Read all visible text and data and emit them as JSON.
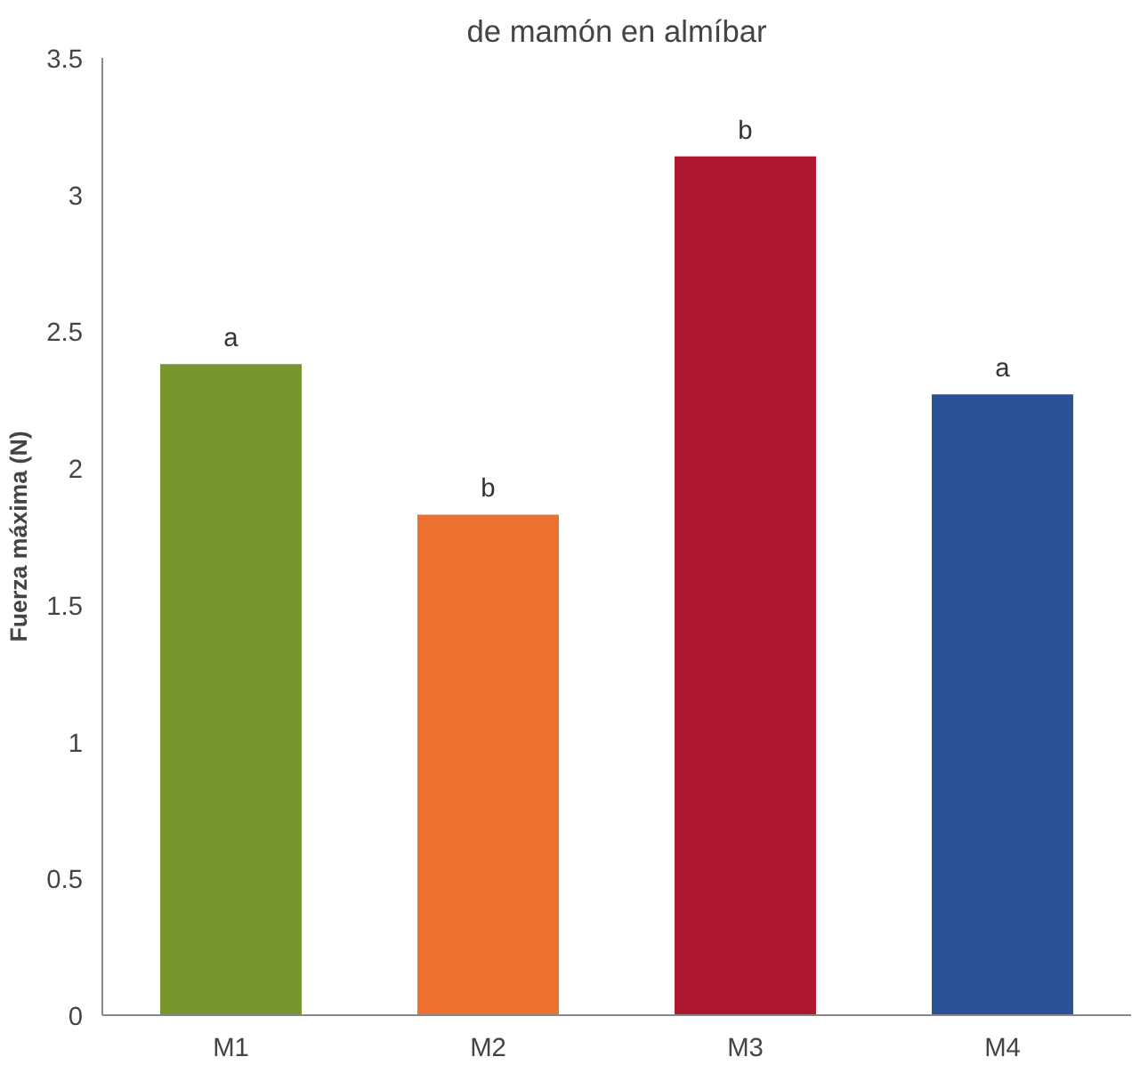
{
  "chart_data": {
    "type": "bar",
    "title": "de mamón en almíbar",
    "ylabel": "Fuerza máxima (N)",
    "categories": [
      "M1",
      "M2",
      "M3",
      "M4"
    ],
    "values": [
      2.38,
      1.83,
      3.14,
      2.27
    ],
    "colors": [
      "#77962b",
      "#ec7030",
      "#ae1730",
      "#2b5297"
    ],
    "ylim": [
      0,
      3.5
    ],
    "yticks": [
      0,
      0.5,
      1,
      1.5,
      2,
      2.5,
      3,
      3.5
    ],
    "grid": false,
    "annotations": [
      {
        "text": "a",
        "x": "M1",
        "y": 2.38
      },
      {
        "text": "b",
        "x": "M2",
        "y": 1.83
      },
      {
        "text": "b",
        "x": "M3",
        "y": 3.14
      },
      {
        "text": "a",
        "x": "M4",
        "y": 2.27
      }
    ]
  }
}
